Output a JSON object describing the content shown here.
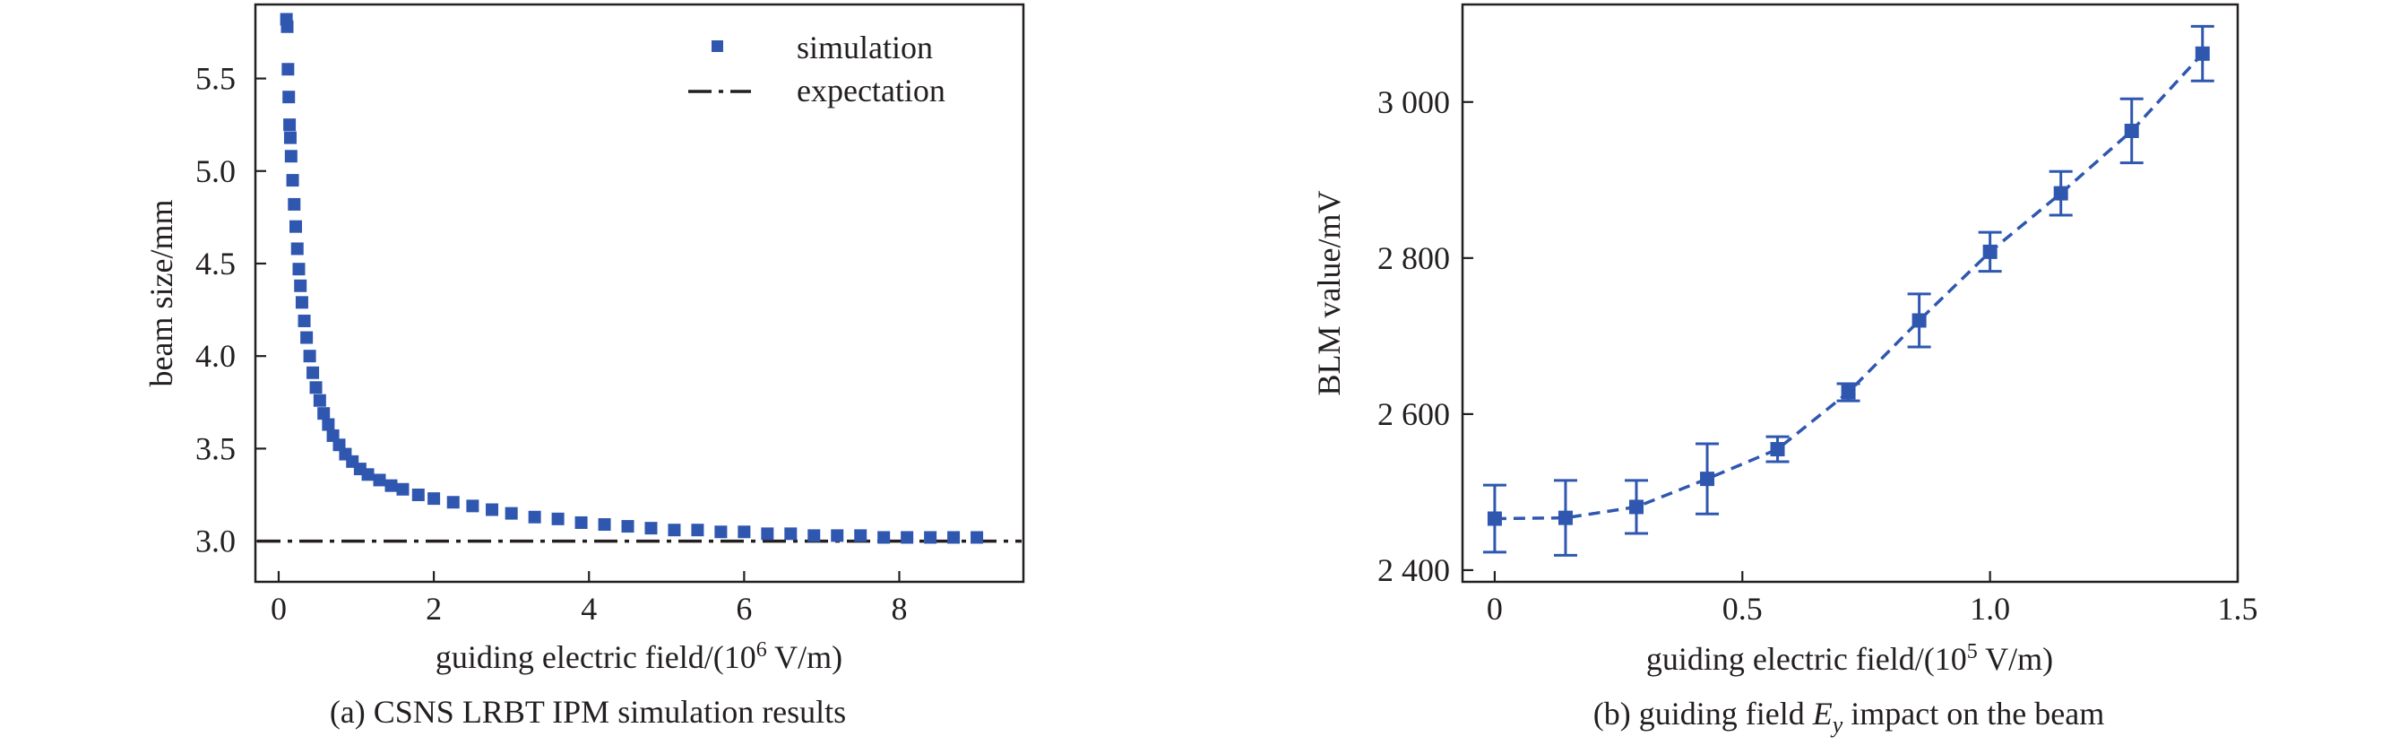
{
  "chart_data": [
    {
      "type": "scatter",
      "xlabel_prefix": "guiding electric field/(10",
      "xlabel_sup": "6",
      "xlabel_suffix": " V/m)",
      "ylabel": "beam size/mm",
      "caption": "(a) CSNS LRBT IPM simulation results",
      "xlim": [
        -0.3,
        9.6
      ],
      "ylim": [
        2.78,
        5.9
      ],
      "xticks": [
        {
          "v": 0,
          "label": "0"
        },
        {
          "v": 2,
          "label": "2"
        },
        {
          "v": 4,
          "label": "4"
        },
        {
          "v": 6,
          "label": "6"
        },
        {
          "v": 8,
          "label": "8"
        }
      ],
      "yticks": [
        {
          "v": 3.0,
          "label": "3.0"
        },
        {
          "v": 3.5,
          "label": "3.5"
        },
        {
          "v": 4.0,
          "label": "4.0"
        },
        {
          "v": 4.5,
          "label": "4.5"
        },
        {
          "v": 5.0,
          "label": "5.0"
        },
        {
          "v": 5.5,
          "label": "5.5"
        }
      ],
      "legend_position": "top-right",
      "series": [
        {
          "name": "simulation",
          "color": "#2f57b0",
          "marker": "square",
          "points": [
            [
              0.1,
              5.82
            ],
            [
              0.11,
              5.78
            ],
            [
              0.12,
              5.55
            ],
            [
              0.13,
              5.4
            ],
            [
              0.14,
              5.25
            ],
            [
              0.15,
              5.18
            ],
            [
              0.16,
              5.08
            ],
            [
              0.18,
              4.95
            ],
            [
              0.2,
              4.82
            ],
            [
              0.22,
              4.7
            ],
            [
              0.24,
              4.58
            ],
            [
              0.26,
              4.47
            ],
            [
              0.28,
              4.38
            ],
            [
              0.3,
              4.29
            ],
            [
              0.33,
              4.19
            ],
            [
              0.36,
              4.1
            ],
            [
              0.4,
              4.0
            ],
            [
              0.44,
              3.91
            ],
            [
              0.48,
              3.83
            ],
            [
              0.53,
              3.76
            ],
            [
              0.58,
              3.69
            ],
            [
              0.64,
              3.63
            ],
            [
              0.7,
              3.57
            ],
            [
              0.78,
              3.52
            ],
            [
              0.86,
              3.47
            ],
            [
              0.95,
              3.43
            ],
            [
              1.05,
              3.39
            ],
            [
              1.15,
              3.36
            ],
            [
              1.3,
              3.33
            ],
            [
              1.45,
              3.3
            ],
            [
              1.6,
              3.28
            ],
            [
              1.8,
              3.25
            ],
            [
              2.0,
              3.23
            ],
            [
              2.25,
              3.21
            ],
            [
              2.5,
              3.19
            ],
            [
              2.75,
              3.17
            ],
            [
              3.0,
              3.15
            ],
            [
              3.3,
              3.13
            ],
            [
              3.6,
              3.12
            ],
            [
              3.9,
              3.1
            ],
            [
              4.2,
              3.09
            ],
            [
              4.5,
              3.08
            ],
            [
              4.8,
              3.07
            ],
            [
              5.1,
              3.06
            ],
            [
              5.4,
              3.06
            ],
            [
              5.7,
              3.05
            ],
            [
              6.0,
              3.05
            ],
            [
              6.3,
              3.04
            ],
            [
              6.6,
              3.04
            ],
            [
              6.9,
              3.03
            ],
            [
              7.2,
              3.03
            ],
            [
              7.5,
              3.03
            ],
            [
              7.8,
              3.02
            ],
            [
              8.1,
              3.02
            ],
            [
              8.4,
              3.02
            ],
            [
              8.7,
              3.02
            ],
            [
              9.0,
              3.02
            ]
          ]
        },
        {
          "name": "expectation",
          "color": "#231f20",
          "style": "dash-dot",
          "y": 3.0
        }
      ]
    },
    {
      "type": "line",
      "xlabel_prefix": "guiding electric field/(10",
      "xlabel_sup": "5",
      "xlabel_suffix": " V/m)",
      "ylabel": "BLM value/mV",
      "caption_prefix": "(b) guiding field ",
      "caption_var": "E",
      "caption_sub": "y",
      "caption_suffix": " impact on the beam",
      "xlim": [
        -0.065,
        1.5
      ],
      "ylim": [
        2385,
        3125
      ],
      "xticks": [
        {
          "v": 0,
          "label": "0"
        },
        {
          "v": 0.5,
          "label": "0.5"
        },
        {
          "v": 1.0,
          "label": "1.0"
        },
        {
          "v": 1.5,
          "label": "1.5"
        }
      ],
      "yticks": [
        {
          "v": 2400,
          "label": "2 400"
        },
        {
          "v": 2600,
          "label": "2 600"
        },
        {
          "v": 2800,
          "label": "2 800"
        },
        {
          "v": 3000,
          "label": "3 000"
        }
      ],
      "series": [
        {
          "color": "#2f57b0",
          "style": "dashed",
          "marker": "square",
          "x": [
            0,
            0.143,
            0.286,
            0.429,
            0.571,
            0.714,
            0.857,
            1.0,
            1.143,
            1.286,
            1.429
          ],
          "y": [
            2466,
            2467,
            2481,
            2517,
            2555,
            2628,
            2720,
            2808,
            2883,
            2963,
            3062
          ],
          "err": [
            43,
            48,
            34,
            45,
            16,
            11,
            34,
            25,
            28,
            41,
            35
          ]
        }
      ]
    }
  ]
}
